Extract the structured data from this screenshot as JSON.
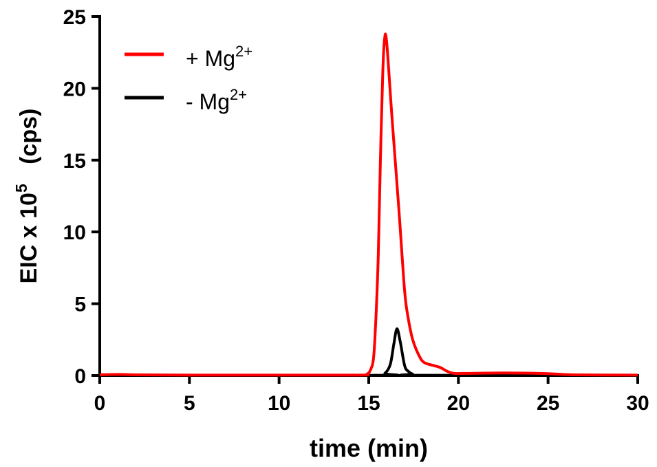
{
  "chart_data": {
    "type": "line",
    "xlabel": "time (min)",
    "ylabel": {
      "main": "EIC  x 10",
      "exp": "5",
      "unit": "(cps)"
    },
    "xlim": [
      0,
      30
    ],
    "ylim": [
      0,
      25
    ],
    "xticks": [
      "0",
      "5",
      "10",
      "15",
      "20",
      "25",
      "30"
    ],
    "yticks": [
      "0",
      "5",
      "10",
      "15",
      "20",
      "25"
    ],
    "grid": false,
    "legend_position": "top-left",
    "series": [
      {
        "name": "+ Mg",
        "sup": "2+",
        "color": "#ff0000",
        "x": [
          0,
          1,
          2,
          5,
          10,
          14.5,
          14.9,
          15.1,
          15.27,
          15.4,
          15.53,
          15.65,
          15.78,
          15.88,
          16.0,
          16.3,
          16.69,
          17.0,
          17.2,
          17.45,
          17.8,
          18.1,
          18.7,
          19.0,
          19.37,
          19.75,
          20.5,
          22.5,
          24.5,
          25.5,
          26.5,
          30
        ],
        "y": [
          0.05,
          0.08,
          0.05,
          0.03,
          0.03,
          0.03,
          0.1,
          0.4,
          1.25,
          4.0,
          8.3,
          15.0,
          21.0,
          23.4,
          23.2,
          17.9,
          11.4,
          5.9,
          4.0,
          2.5,
          1.4,
          0.9,
          0.67,
          0.55,
          0.3,
          0.15,
          0.15,
          0.18,
          0.15,
          0.1,
          0.05,
          0.03
        ]
      },
      {
        "name": "- Mg",
        "sup": "2+",
        "color": "#000000",
        "x": [
          0,
          1,
          2,
          15.5,
          15.9,
          16.2,
          16.4,
          16.57,
          16.75,
          17.0,
          17.2,
          17.45,
          17.8,
          30
        ],
        "y": [
          0.03,
          0.06,
          0.03,
          0.02,
          0.15,
          0.77,
          2.2,
          3.25,
          2.4,
          0.7,
          0.3,
          0.1,
          0.02,
          0.02
        ]
      }
    ]
  }
}
